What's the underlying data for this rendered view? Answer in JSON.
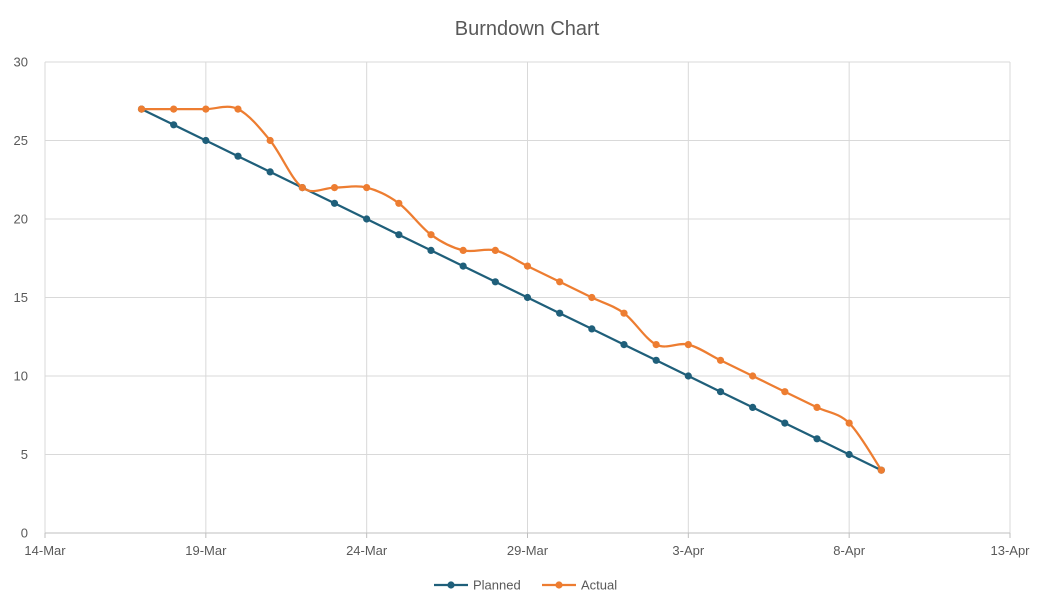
{
  "chart_data": {
    "type": "line",
    "title": "Burndown Chart",
    "xlabel": "",
    "ylabel": "",
    "xlim": [
      "14-Mar",
      "13-Apr"
    ],
    "ylim": [
      0,
      30
    ],
    "y_ticks": [
      0,
      5,
      10,
      15,
      20,
      25,
      30
    ],
    "x_ticks": [
      "14-Mar",
      "19-Mar",
      "24-Mar",
      "29-Mar",
      "3-Apr",
      "8-Apr",
      "13-Apr"
    ],
    "x": [
      "17-Mar",
      "18-Mar",
      "19-Mar",
      "20-Mar",
      "21-Mar",
      "22-Mar",
      "23-Mar",
      "24-Mar",
      "25-Mar",
      "26-Mar",
      "27-Mar",
      "28-Mar",
      "29-Mar",
      "30-Mar",
      "31-Mar",
      "1-Apr",
      "2-Apr",
      "3-Apr",
      "4-Apr",
      "5-Apr",
      "6-Apr",
      "7-Apr",
      "8-Apr",
      "9-Apr"
    ],
    "grid": true,
    "legend_position": "bottom",
    "series": [
      {
        "name": "Planned",
        "color": "#1f5f7a",
        "smooth": false,
        "values": [
          27,
          26,
          25,
          24,
          23,
          22,
          21,
          20,
          19,
          18,
          17,
          16,
          15,
          14,
          13,
          12,
          11,
          10,
          9,
          8,
          7,
          6,
          5,
          4
        ]
      },
      {
        "name": "Actual",
        "color": "#ed7d31",
        "smooth": true,
        "values": [
          27,
          27,
          27,
          27,
          25,
          22,
          22,
          22,
          21,
          19,
          18,
          18,
          17,
          16,
          15,
          14,
          12,
          12,
          11,
          10,
          9,
          8,
          7,
          4
        ]
      }
    ]
  }
}
